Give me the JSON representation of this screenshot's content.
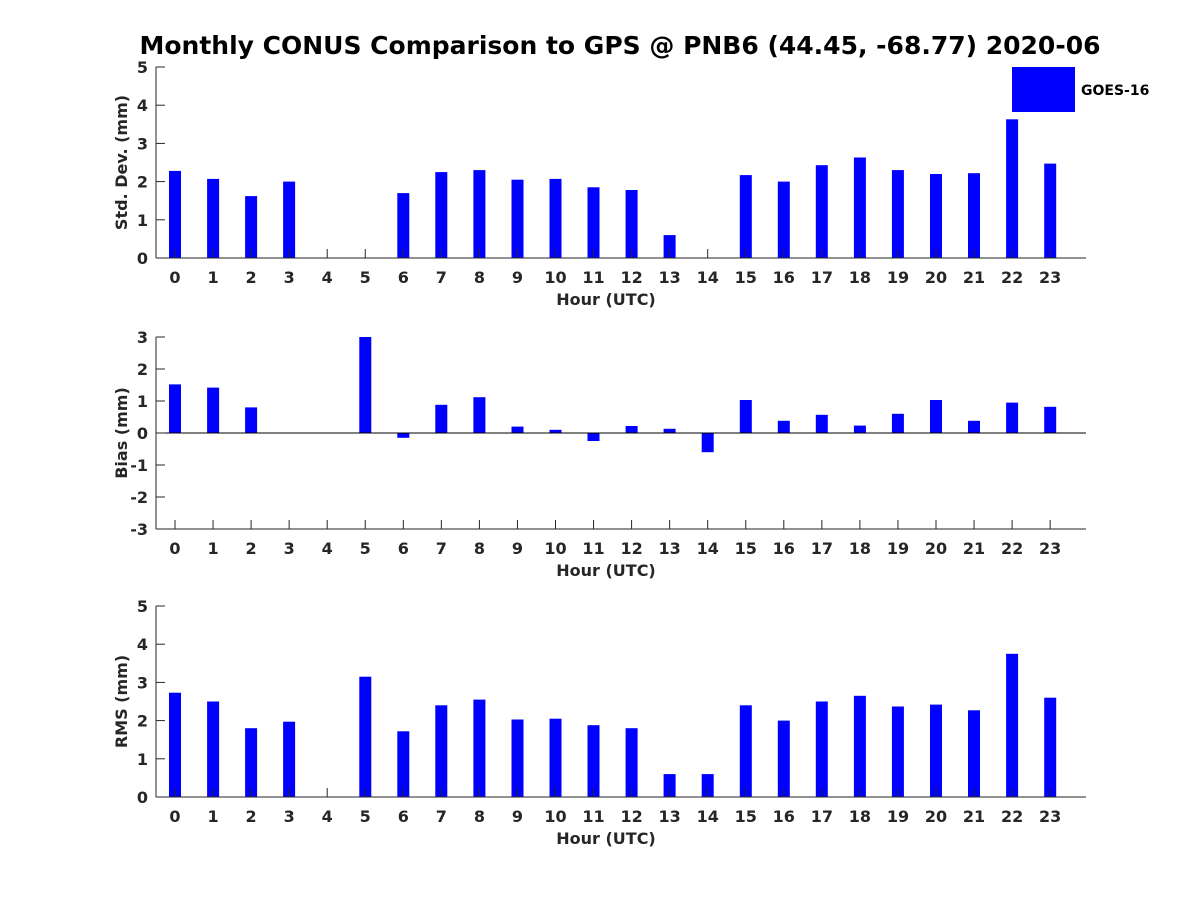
{
  "colors": {
    "bar": "#0000ff",
    "axis": "#262626"
  },
  "chart_data": [
    {
      "type": "bar",
      "title": "Monthly CONUS Comparison to GPS @ PNB6 (44.45, -68.77) 2020-06",
      "xlabel": "Hour (UTC)",
      "ylabel": "Std. Dev. (mm)",
      "ylim": [
        0,
        5
      ],
      "yticks": [
        0,
        1,
        2,
        3,
        4,
        5
      ],
      "categories": [
        "0",
        "1",
        "2",
        "3",
        "4",
        "5",
        "6",
        "7",
        "8",
        "9",
        "10",
        "11",
        "12",
        "13",
        "14",
        "15",
        "16",
        "17",
        "18",
        "19",
        "20",
        "21",
        "22",
        "23"
      ],
      "series": [
        {
          "name": "GOES-16",
          "values": [
            2.28,
            2.07,
            1.62,
            2.0,
            null,
            null,
            1.7,
            2.25,
            2.3,
            2.05,
            2.07,
            1.85,
            1.78,
            0.6,
            null,
            2.17,
            2.0,
            2.43,
            2.63,
            2.3,
            2.2,
            2.22,
            3.63,
            2.47
          ]
        }
      ],
      "legend": {
        "entries": [
          "GOES-16"
        ],
        "placement": "top-right"
      },
      "grid": false
    },
    {
      "type": "bar",
      "title": "",
      "xlabel": "Hour (UTC)",
      "ylabel": "Bias (mm)",
      "ylim": [
        -3,
        3
      ],
      "yticks": [
        -3,
        -2,
        -1,
        0,
        1,
        2,
        3
      ],
      "categories": [
        "0",
        "1",
        "2",
        "3",
        "4",
        "5",
        "6",
        "7",
        "8",
        "9",
        "10",
        "11",
        "12",
        "13",
        "14",
        "15",
        "16",
        "17",
        "18",
        "19",
        "20",
        "21",
        "22",
        "23"
      ],
      "series": [
        {
          "name": "GOES-16",
          "values": [
            1.52,
            1.42,
            0.8,
            null,
            null,
            3.0,
            -0.15,
            0.88,
            1.12,
            0.2,
            0.1,
            -0.25,
            0.22,
            0.13,
            -0.6,
            1.03,
            0.38,
            0.57,
            0.23,
            0.6,
            1.03,
            0.38,
            0.95,
            0.82
          ]
        }
      ],
      "grid": false
    },
    {
      "type": "bar",
      "title": "",
      "xlabel": "Hour (UTC)",
      "ylabel": "RMS (mm)",
      "ylim": [
        0,
        5
      ],
      "yticks": [
        0,
        1,
        2,
        3,
        4,
        5
      ],
      "categories": [
        "0",
        "1",
        "2",
        "3",
        "4",
        "5",
        "6",
        "7",
        "8",
        "9",
        "10",
        "11",
        "12",
        "13",
        "14",
        "15",
        "16",
        "17",
        "18",
        "19",
        "20",
        "21",
        "22",
        "23"
      ],
      "series": [
        {
          "name": "GOES-16",
          "values": [
            2.73,
            2.5,
            1.8,
            1.97,
            null,
            3.15,
            1.72,
            2.4,
            2.55,
            2.03,
            2.05,
            1.88,
            1.8,
            0.6,
            0.6,
            2.4,
            2.0,
            2.5,
            2.65,
            2.37,
            2.42,
            2.27,
            3.75,
            2.6
          ]
        }
      ],
      "grid": false
    }
  ]
}
